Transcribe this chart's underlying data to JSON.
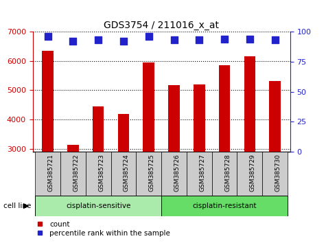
{
  "title": "GDS3754 / 211016_x_at",
  "samples": [
    "GSM385721",
    "GSM385722",
    "GSM385723",
    "GSM385724",
    "GSM385725",
    "GSM385726",
    "GSM385727",
    "GSM385728",
    "GSM385729",
    "GSM385730"
  ],
  "counts": [
    6350,
    3150,
    4450,
    4200,
    5950,
    5175,
    5200,
    5850,
    6150,
    5325
  ],
  "percentile_ranks": [
    96,
    92,
    93,
    92,
    96,
    93,
    93,
    94,
    94,
    93
  ],
  "ylim_left": [
    2900,
    7000
  ],
  "ylim_right": [
    0,
    100
  ],
  "yticks_left": [
    3000,
    4000,
    5000,
    6000,
    7000
  ],
  "yticks_right": [
    0,
    25,
    50,
    75,
    100
  ],
  "bar_color": "#cc0000",
  "dot_color": "#2222cc",
  "group_labels": [
    "cisplatin-sensitive",
    "cisplatin-resistant"
  ],
  "group_split": 5,
  "group_color_light": "#aaeaaa",
  "group_color_dark": "#66dd66",
  "tick_box_color": "#cccccc",
  "legend_label_count": "count",
  "legend_label_percentile": "percentile rank within the sample",
  "cell_line_label": "cell line",
  "bar_width": 0.45,
  "dot_size": 55,
  "base_value": 2900
}
